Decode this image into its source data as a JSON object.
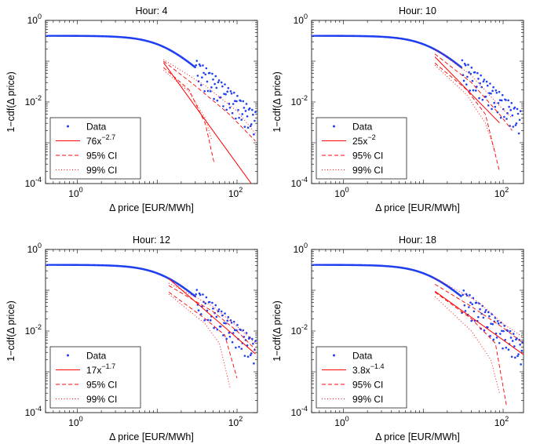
{
  "chart_data": [
    {
      "type": "scatter",
      "title": "Hour: 4",
      "xlabel": "Δ price [EUR/MWh]",
      "ylabel": "1−cdf(Δ price)",
      "xscale": "log",
      "yscale": "log",
      "xlim": [
        0.4,
        180
      ],
      "ylim": [
        0.0001,
        1
      ],
      "xticks": [
        {
          "base": "10",
          "exp": "0"
        },
        {
          "base": "10",
          "exp": "2"
        }
      ],
      "yticks": [
        {
          "base": "10",
          "exp": "0"
        },
        {
          "base": "10",
          "exp": "-2"
        },
        {
          "base": "10",
          "exp": "-4"
        }
      ],
      "legend_position": "bottom-left",
      "series": [
        {
          "name": "Data",
          "kind": "points",
          "color": "#1f3ff0",
          "decade_min": 0.4,
          "decade_max": 170,
          "ymin": 0.00045
        },
        {
          "name": "76x^{-2.7}",
          "kind": "fit",
          "coef": 76,
          "exponent": -2.7,
          "color": "#ff0000",
          "x": [
            12,
            180
          ]
        },
        {
          "name": "95% CI",
          "kind": "ci",
          "color": "#ff0000",
          "upper": [
            [
              12,
              0.1
            ],
            [
              30,
              0.025
            ],
            [
              80,
              0.005
            ],
            [
              170,
              0.0011
            ]
          ],
          "lower": [
            [
              12,
              0.07
            ],
            [
              25,
              0.02
            ],
            [
              40,
              0.003
            ],
            [
              52,
              0.0003
            ]
          ]
        },
        {
          "name": "99% CI",
          "kind": "ci",
          "color": "#ff0000",
          "upper": [
            [
              12,
              0.11
            ],
            [
              40,
              0.025
            ],
            [
              100,
              0.006
            ],
            [
              170,
              0.0017
            ]
          ],
          "lower": [
            [
              12,
              0.06
            ],
            [
              25,
              0.018
            ],
            [
              40,
              0.004
            ],
            [
              48,
              0.0012
            ]
          ]
        }
      ],
      "legend": [
        {
          "label": "Data",
          "style": "dots"
        },
        {
          "base": "76x",
          "exp": "−2.7",
          "style": "solid"
        },
        {
          "label": "95% CI",
          "style": "dashed"
        },
        {
          "label": "99% CI",
          "style": "dotted"
        }
      ]
    },
    {
      "type": "scatter",
      "title": "Hour: 10",
      "xlabel": "Δ price [EUR/MWh]",
      "ylabel": "1−cdf(Δ price)",
      "xscale": "log",
      "yscale": "log",
      "xlim": [
        0.4,
        180
      ],
      "ylim": [
        0.0001,
        1
      ],
      "xticks": [
        {
          "base": "10",
          "exp": "0"
        },
        {
          "base": "10",
          "exp": "2"
        }
      ],
      "yticks": [
        {
          "base": "10",
          "exp": "0"
        },
        {
          "base": "10",
          "exp": "-2"
        },
        {
          "base": "10",
          "exp": "-4"
        }
      ],
      "legend_position": "bottom-left",
      "series": [
        {
          "name": "Data",
          "kind": "points",
          "color": "#1f3ff0",
          "decade_min": 0.4,
          "decade_max": 165,
          "ymin": 0.00045
        },
        {
          "name": "25x^{-2}",
          "kind": "fit",
          "coef": 25,
          "exponent": -2,
          "color": "#ff0000",
          "x": [
            14,
            90
          ]
        },
        {
          "name": "95% CI",
          "kind": "ci",
          "color": "#ff0000",
          "upper": [
            [
              14,
              0.15
            ],
            [
              40,
              0.03
            ],
            [
              90,
              0.005
            ],
            [
              130,
              0.002
            ]
          ],
          "lower": [
            [
              14,
              0.09
            ],
            [
              35,
              0.02
            ],
            [
              60,
              0.005
            ],
            [
              90,
              0.0002
            ]
          ]
        },
        {
          "name": "99% CI",
          "kind": "ci",
          "color": "#ff0000",
          "upper": [
            [
              14,
              0.2
            ],
            [
              40,
              0.045
            ],
            [
              90,
              0.008
            ],
            [
              130,
              0.004
            ]
          ],
          "lower": [
            [
              14,
              0.08
            ],
            [
              35,
              0.015
            ],
            [
              60,
              0.003
            ],
            [
              80,
              0.0006
            ]
          ]
        }
      ],
      "legend": [
        {
          "label": "Data",
          "style": "dots"
        },
        {
          "base": "25x",
          "exp": "−2",
          "style": "solid"
        },
        {
          "label": "95% CI",
          "style": "dashed"
        },
        {
          "label": "99% CI",
          "style": "dotted"
        }
      ]
    },
    {
      "type": "scatter",
      "title": "Hour: 12",
      "xlabel": "Δ price [EUR/MWh]",
      "ylabel": "1−cdf(Δ price)",
      "xscale": "log",
      "yscale": "log",
      "xlim": [
        0.4,
        180
      ],
      "ylim": [
        0.0001,
        1
      ],
      "xticks": [
        {
          "base": "10",
          "exp": "0"
        },
        {
          "base": "10",
          "exp": "2"
        }
      ],
      "yticks": [
        {
          "base": "10",
          "exp": "0"
        },
        {
          "base": "10",
          "exp": "-2"
        },
        {
          "base": "10",
          "exp": "-4"
        }
      ],
      "legend_position": "bottom-left",
      "series": [
        {
          "name": "Data",
          "kind": "points",
          "color": "#1f3ff0",
          "decade_min": 0.4,
          "decade_max": 170,
          "ymin": 0.00045
        },
        {
          "name": "17x^{-1.7}",
          "kind": "fit",
          "coef": 17,
          "exponent": -1.7,
          "color": "#ff0000",
          "x": [
            14,
            170
          ]
        },
        {
          "name": "95% CI",
          "kind": "ci",
          "color": "#ff0000",
          "upper": [
            [
              14,
              0.13
            ],
            [
              50,
              0.03
            ],
            [
              100,
              0.01
            ],
            [
              170,
              0.0035
            ]
          ],
          "lower": [
            [
              14,
              0.09
            ],
            [
              40,
              0.02
            ],
            [
              70,
              0.008
            ],
            [
              100,
              0.0007
            ]
          ]
        },
        {
          "name": "99% CI",
          "kind": "ci",
          "color": "#ff0000",
          "upper": [
            [
              14,
              0.15
            ],
            [
              50,
              0.04
            ],
            [
              100,
              0.013
            ],
            [
              170,
              0.005
            ]
          ],
          "lower": [
            [
              14,
              0.08
            ],
            [
              40,
              0.015
            ],
            [
              60,
              0.005
            ],
            [
              82,
              0.0004
            ]
          ]
        }
      ],
      "legend": [
        {
          "label": "Data",
          "style": "dots"
        },
        {
          "base": "17x",
          "exp": "−1.7",
          "style": "solid"
        },
        {
          "label": "95% CI",
          "style": "dashed"
        },
        {
          "label": "99% CI",
          "style": "dotted"
        }
      ]
    },
    {
      "type": "scatter",
      "title": "Hour: 18",
      "xlabel": "Δ price [EUR/MWh]",
      "ylabel": "1−cdf(Δ price)",
      "xscale": "log",
      "yscale": "log",
      "xlim": [
        0.4,
        180
      ],
      "ylim": [
        0.0001,
        1
      ],
      "xticks": [
        {
          "base": "10",
          "exp": "0"
        },
        {
          "base": "10",
          "exp": "2"
        }
      ],
      "yticks": [
        {
          "base": "10",
          "exp": "0"
        },
        {
          "base": "10",
          "exp": "-2"
        },
        {
          "base": "10",
          "exp": "-4"
        }
      ],
      "legend_position": "bottom-left",
      "series": [
        {
          "name": "Data",
          "kind": "points",
          "color": "#1f3ff0",
          "decade_min": 0.4,
          "decade_max": 175,
          "ymin": 0.0014
        },
        {
          "name": "3.8x^{-1.4}",
          "kind": "fit",
          "coef": 3.8,
          "exponent": -1.4,
          "color": "#ff0000",
          "x": [
            14,
            180
          ]
        },
        {
          "name": "95% CI",
          "kind": "ci",
          "color": "#ff0000",
          "upper": [
            [
              14,
              0.14
            ],
            [
              40,
              0.04
            ],
            [
              100,
              0.012
            ],
            [
              180,
              0.005
            ]
          ],
          "lower": [
            [
              14,
              0.09
            ],
            [
              40,
              0.02
            ],
            [
              80,
              0.005
            ],
            [
              110,
              0.00015
            ]
          ]
        },
        {
          "name": "99% CI",
          "kind": "ci",
          "color": "#ff0000",
          "upper": [
            [
              14,
              0.2
            ],
            [
              50,
              0.05
            ],
            [
              100,
              0.015
            ],
            [
              180,
              0.007
            ]
          ],
          "lower": [
            [
              14,
              0.07
            ],
            [
              40,
              0.01
            ],
            [
              70,
              0.002
            ],
            [
              90,
              0.0003
            ]
          ]
        }
      ],
      "legend": [
        {
          "label": "Data",
          "style": "dots"
        },
        {
          "base": "3.8x",
          "exp": "−1.4",
          "style": "solid"
        },
        {
          "label": "95% CI",
          "style": "dashed"
        },
        {
          "label": "99% CI",
          "style": "dotted"
        }
      ]
    }
  ]
}
